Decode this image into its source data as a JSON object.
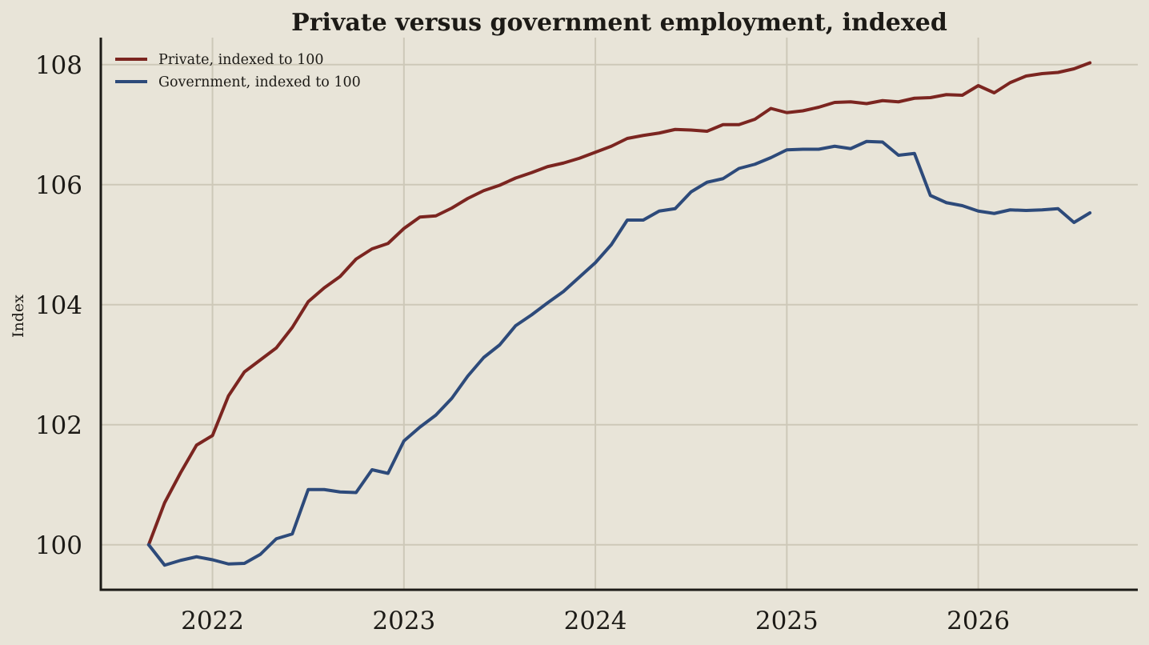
{
  "chart_data": {
    "type": "line",
    "title": "Private versus government employment, indexed",
    "xlabel": "",
    "ylabel": "Index",
    "xlim": [
      "2021-06",
      "2026-11"
    ],
    "ylim": [
      99.25,
      108.45
    ],
    "x_ticks": [
      "2022",
      "2023",
      "2024",
      "2025",
      "2026"
    ],
    "y_ticks": [
      "100",
      "102",
      "104",
      "106",
      "108"
    ],
    "grid": true,
    "legend_position": "top-left",
    "x": [
      "2021-09",
      "2021-10",
      "2021-11",
      "2021-12",
      "2022-01",
      "2022-02",
      "2022-03",
      "2022-04",
      "2022-05",
      "2022-06",
      "2022-07",
      "2022-08",
      "2022-09",
      "2022-10",
      "2022-11",
      "2022-12",
      "2023-01",
      "2023-02",
      "2023-03",
      "2023-04",
      "2023-05",
      "2023-06",
      "2023-07",
      "2023-08",
      "2023-09",
      "2023-10",
      "2023-11",
      "2023-12",
      "2024-01",
      "2024-02",
      "2024-03",
      "2024-04",
      "2024-05",
      "2024-06",
      "2024-07",
      "2024-08",
      "2024-09",
      "2024-10",
      "2024-11",
      "2024-12",
      "2025-01",
      "2025-02",
      "2025-03",
      "2025-04",
      "2025-05",
      "2025-06",
      "2025-07",
      "2025-08",
      "2025-09",
      "2025-10",
      "2025-11",
      "2025-12",
      "2026-01",
      "2026-02",
      "2026-03",
      "2026-04",
      "2026-05",
      "2026-06",
      "2026-07",
      "2026-08"
    ],
    "series": [
      {
        "name": "Private, indexed to 100",
        "color": "#7b2520",
        "values": [
          100.0,
          100.7,
          101.2,
          101.66,
          101.82,
          102.48,
          102.88,
          103.08,
          103.28,
          103.62,
          104.05,
          104.28,
          104.47,
          104.76,
          104.93,
          105.02,
          105.27,
          105.46,
          105.48,
          105.61,
          105.77,
          105.9,
          105.99,
          106.11,
          106.2,
          106.3,
          106.36,
          106.44,
          106.54,
          106.64,
          106.77,
          106.82,
          106.86,
          106.92,
          106.91,
          106.89,
          107.0,
          107.0,
          107.09,
          107.27,
          107.2,
          107.23,
          107.29,
          107.37,
          107.38,
          107.35,
          107.4,
          107.38,
          107.44,
          107.45,
          107.5,
          107.49,
          107.65,
          107.53,
          107.7,
          107.81,
          107.85,
          107.87,
          107.93,
          108.03
        ]
      },
      {
        "name": "Government, indexed to 100",
        "color": "#2d4a7a",
        "values": [
          100.0,
          99.66,
          99.74,
          99.8,
          99.75,
          99.68,
          99.69,
          99.84,
          100.1,
          100.18,
          100.92,
          100.92,
          100.88,
          100.87,
          101.25,
          101.19,
          101.73,
          101.96,
          102.16,
          102.44,
          102.81,
          103.12,
          103.33,
          103.65,
          103.83,
          104.03,
          104.22,
          104.46,
          104.7,
          105.0,
          105.41,
          105.41,
          105.56,
          105.6,
          105.88,
          106.04,
          106.1,
          106.27,
          106.34,
          106.45,
          106.58,
          106.59,
          106.59,
          106.64,
          106.6,
          106.72,
          106.71,
          106.49,
          106.52,
          105.82,
          105.7,
          105.65,
          105.56,
          105.52,
          105.58,
          105.57,
          105.58,
          105.6,
          105.37,
          105.53
        ]
      }
    ]
  }
}
